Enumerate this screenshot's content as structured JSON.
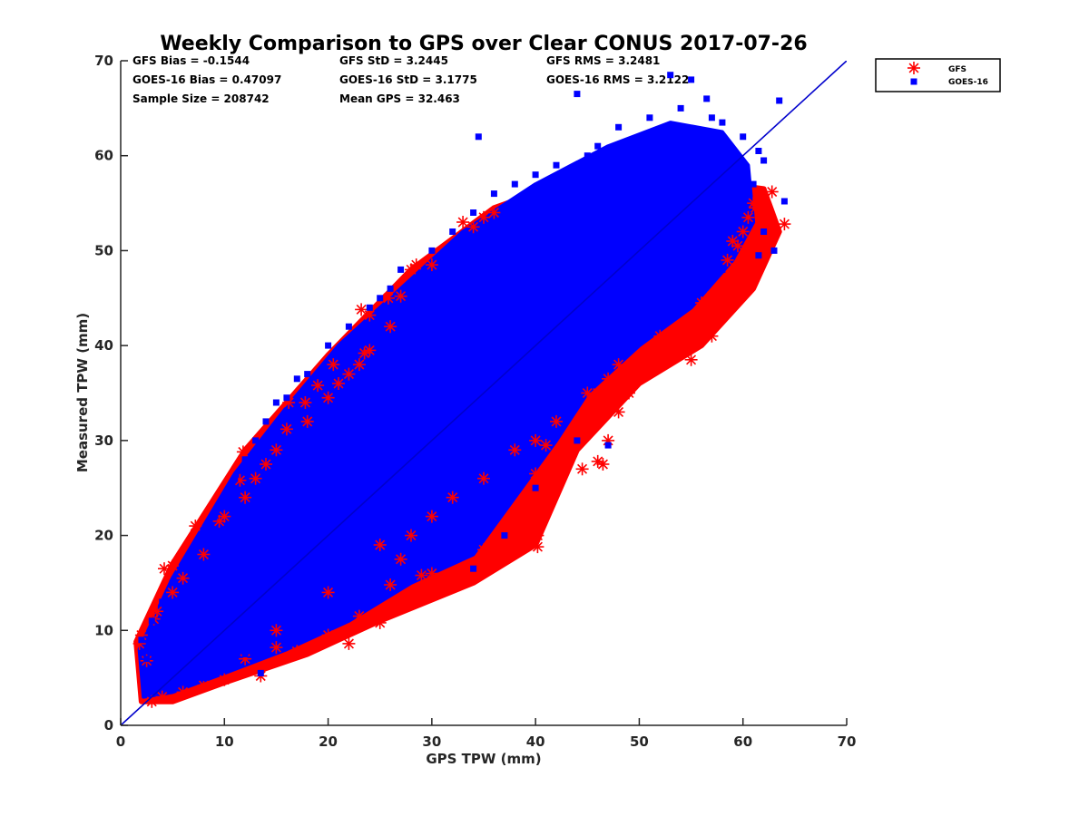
{
  "chart_data": {
    "type": "scatter",
    "title": "Weekly Comparison to GPS over Clear CONUS 2017-07-26",
    "xlabel": "GPS TPW (mm)",
    "ylabel": "Measured TPW (mm)",
    "xlim": [
      0,
      70
    ],
    "ylim": [
      0,
      70
    ],
    "xticks": [
      0,
      10,
      20,
      30,
      40,
      50,
      60,
      70
    ],
    "yticks": [
      0,
      10,
      20,
      30,
      40,
      50,
      60,
      70
    ],
    "grid": false,
    "legend_position": "outside-top-right",
    "reference_line": {
      "x": [
        0,
        70
      ],
      "y": [
        0,
        70
      ],
      "color": "#0000cc"
    },
    "stats": {
      "gfs_bias": "GFS Bias = -0.1544",
      "goes_bias": "GOES-16 Bias = 0.47097",
      "sample_size": "Sample Size = 208742",
      "gfs_std": "GFS StD = 3.2445",
      "goes_std": "GOES-16 StD = 3.1775",
      "mean_gps": "Mean GPS = 32.463",
      "gfs_rms": "GFS RMS = 3.2481",
      "goes_rms": "GOES-16 RMS = 3.2122"
    },
    "series": [
      {
        "name": "GFS",
        "marker": "asterisk",
        "color": "#ff0000",
        "points": [
          [
            1.8,
            8.6
          ],
          [
            2.5,
            6.8
          ],
          [
            3.2,
            11.2
          ],
          [
            4.2,
            16.5
          ],
          [
            5.0,
            16.8
          ],
          [
            7.2,
            21.0
          ],
          [
            9.5,
            21.5
          ],
          [
            11.5,
            25.8
          ],
          [
            11.8,
            28.8
          ],
          [
            14.0,
            27.5
          ],
          [
            16.0,
            31.2
          ],
          [
            16.2,
            34.0
          ],
          [
            17.8,
            34.0
          ],
          [
            19.0,
            35.8
          ],
          [
            20.5,
            38.0
          ],
          [
            21.0,
            36.0
          ],
          [
            23.0,
            38.0
          ],
          [
            23.5,
            39.2
          ],
          [
            24.0,
            39.5
          ],
          [
            23.2,
            43.8
          ],
          [
            24.0,
            43.2
          ],
          [
            25.8,
            45.0
          ],
          [
            27.0,
            45.2
          ],
          [
            28.0,
            48.0
          ],
          [
            28.5,
            48.5
          ],
          [
            33.0,
            53.0
          ],
          [
            34.0,
            52.5
          ],
          [
            35.0,
            53.5
          ],
          [
            36.0,
            54.0
          ],
          [
            30.0,
            48.5
          ],
          [
            62.8,
            56.2
          ],
          [
            61.0,
            55.0
          ],
          [
            61.2,
            54.5
          ],
          [
            64.0,
            52.8
          ],
          [
            61.0,
            49.5
          ],
          [
            60.5,
            48.2
          ],
          [
            61.0,
            47.0
          ],
          [
            60.0,
            47.5
          ],
          [
            58.0,
            45.0
          ],
          [
            57.0,
            45.2
          ],
          [
            56.5,
            44.0
          ],
          [
            55.0,
            42.5
          ],
          [
            57.0,
            41.0
          ],
          [
            55.0,
            38.5
          ],
          [
            53.0,
            40.0
          ],
          [
            51.0,
            37.5
          ],
          [
            50.5,
            38.5
          ],
          [
            47.0,
            36.5
          ],
          [
            46.0,
            35.0
          ],
          [
            45.0,
            33.0
          ],
          [
            44.5,
            31.0
          ],
          [
            43.0,
            29.5
          ],
          [
            41.0,
            29.5
          ],
          [
            40.0,
            26.5
          ],
          [
            39.0,
            23.0
          ],
          [
            40.2,
            20.0
          ],
          [
            40.2,
            18.8
          ],
          [
            37.0,
            18.5
          ],
          [
            36.0,
            19.0
          ],
          [
            35.0,
            18.5
          ],
          [
            33.0,
            15.5
          ],
          [
            32.5,
            15.8
          ],
          [
            30.0,
            16.0
          ],
          [
            29.0,
            15.8
          ],
          [
            27.0,
            17.5
          ],
          [
            26.0,
            14.8
          ],
          [
            25.0,
            10.8
          ],
          [
            23.0,
            11.5
          ],
          [
            22.0,
            8.6
          ],
          [
            20.0,
            9.5
          ],
          [
            18.0,
            8.0
          ],
          [
            17.0,
            7.8
          ],
          [
            15.0,
            8.2
          ],
          [
            13.5,
            5.2
          ],
          [
            10.0,
            4.8
          ],
          [
            8.0,
            4.2
          ],
          [
            6.0,
            3.5
          ],
          [
            4.0,
            3.0
          ],
          [
            3.0,
            2.5
          ],
          [
            44.5,
            27.0
          ],
          [
            46.0,
            27.8
          ],
          [
            46.5,
            27.5
          ],
          [
            47.0,
            30.0
          ],
          [
            48.0,
            33.0
          ],
          [
            49.0,
            35.0
          ],
          [
            52.0,
            41.0
          ],
          [
            54.0,
            42.0
          ],
          [
            56.0,
            44.5
          ],
          [
            58.0,
            46.0
          ],
          [
            59.5,
            50.5
          ],
          [
            60.0,
            52.0
          ],
          [
            60.5,
            53.5
          ],
          [
            59.0,
            51.0
          ],
          [
            58.5,
            49.0
          ],
          [
            12.0,
            24.0
          ],
          [
            10.0,
            22.0
          ],
          [
            13.0,
            26.0
          ],
          [
            15.0,
            29.0
          ],
          [
            18.0,
            32.0
          ],
          [
            20.0,
            34.5
          ],
          [
            22.0,
            37.0
          ],
          [
            26.0,
            42.0
          ],
          [
            8.0,
            18.0
          ],
          [
            6.0,
            15.5
          ],
          [
            5.0,
            14.0
          ],
          [
            3.5,
            12.0
          ],
          [
            2.0,
            9.5
          ],
          [
            30.0,
            22.0
          ],
          [
            35.0,
            26.0
          ],
          [
            38.0,
            29.0
          ],
          [
            42.0,
            32.0
          ],
          [
            45.0,
            35.0
          ],
          [
            48.0,
            38.0
          ],
          [
            25.0,
            19.0
          ],
          [
            20.0,
            14.0
          ],
          [
            15.0,
            10.0
          ],
          [
            12.0,
            7.0
          ],
          [
            28.0,
            20.0
          ],
          [
            32.0,
            24.0
          ],
          [
            40.0,
            30.0
          ]
        ]
      },
      {
        "name": "GOES-16",
        "marker": "square",
        "color": "#0000ff",
        "points": [
          [
            44.0,
            66.5
          ],
          [
            53.0,
            68.5
          ],
          [
            55.0,
            68.0
          ],
          [
            56.5,
            66.0
          ],
          [
            58.0,
            63.5
          ],
          [
            60.0,
            62.0
          ],
          [
            61.5,
            60.5
          ],
          [
            62.0,
            59.5
          ],
          [
            63.5,
            65.8
          ],
          [
            64.0,
            55.2
          ],
          [
            57.0,
            64.0
          ],
          [
            54.0,
            65.0
          ],
          [
            51.0,
            64.0
          ],
          [
            48.0,
            63.0
          ],
          [
            46.0,
            61.0
          ],
          [
            45.0,
            60.0
          ],
          [
            42.0,
            59.0
          ],
          [
            40.0,
            58.0
          ],
          [
            38.0,
            57.0
          ],
          [
            36.0,
            56.0
          ],
          [
            34.0,
            54.0
          ],
          [
            32.0,
            52.0
          ],
          [
            30.0,
            50.0
          ],
          [
            34.5,
            62.0
          ],
          [
            27.0,
            48.0
          ],
          [
            26.0,
            46.0
          ],
          [
            25.0,
            45.0
          ],
          [
            24.0,
            44.0
          ],
          [
            22.0,
            42.0
          ],
          [
            20.0,
            40.0
          ],
          [
            18.0,
            37.0
          ],
          [
            16.0,
            34.5
          ],
          [
            15.0,
            34.0
          ],
          [
            17.0,
            36.5
          ],
          [
            14.0,
            32.0
          ],
          [
            13.0,
            30.0
          ],
          [
            12.0,
            28.0
          ],
          [
            11.0,
            26.0
          ],
          [
            10.0,
            24.0
          ],
          [
            9.0,
            22.0
          ],
          [
            8.0,
            20.0
          ],
          [
            7.0,
            18.0
          ],
          [
            6.0,
            16.5
          ],
          [
            5.0,
            15.0
          ],
          [
            4.0,
            13.0
          ],
          [
            3.0,
            11.0
          ],
          [
            2.0,
            9.0
          ],
          [
            2.5,
            7.0
          ],
          [
            3.0,
            5.0
          ],
          [
            4.0,
            4.0
          ],
          [
            6.0,
            4.5
          ],
          [
            8.0,
            5.0
          ],
          [
            10.0,
            6.0
          ],
          [
            12.0,
            7.5
          ],
          [
            14.0,
            9.0
          ],
          [
            16.0,
            11.0
          ],
          [
            18.0,
            13.0
          ],
          [
            20.0,
            15.0
          ],
          [
            22.0,
            17.0
          ],
          [
            24.0,
            19.0
          ],
          [
            26.0,
            21.0
          ],
          [
            28.0,
            23.0
          ],
          [
            30.0,
            25.0
          ],
          [
            32.0,
            27.0
          ],
          [
            34.0,
            29.0
          ],
          [
            36.0,
            31.0
          ],
          [
            38.0,
            33.0
          ],
          [
            40.0,
            35.0
          ],
          [
            42.0,
            37.0
          ],
          [
            44.0,
            39.0
          ],
          [
            46.0,
            41.0
          ],
          [
            48.0,
            43.0
          ],
          [
            50.0,
            45.0
          ],
          [
            52.0,
            47.0
          ],
          [
            54.0,
            49.0
          ],
          [
            56.0,
            51.0
          ],
          [
            58.0,
            53.0
          ],
          [
            60.0,
            55.0
          ],
          [
            61.0,
            57.0
          ],
          [
            60.0,
            58.5
          ],
          [
            47.0,
            29.5
          ],
          [
            44.0,
            30.0
          ],
          [
            40.0,
            25.0
          ],
          [
            37.0,
            20.0
          ],
          [
            34.0,
            16.5
          ],
          [
            13.5,
            5.5
          ],
          [
            15.0,
            12.0
          ],
          [
            25.0,
            30.0
          ],
          [
            30.0,
            35.0
          ],
          [
            35.0,
            40.0
          ],
          [
            40.0,
            45.0
          ],
          [
            45.0,
            50.0
          ],
          [
            50.0,
            55.0
          ],
          [
            55.0,
            58.0
          ],
          [
            20.0,
            25.0
          ],
          [
            15.0,
            20.0
          ],
          [
            10.0,
            15.0
          ],
          [
            5.0,
            10.0
          ],
          [
            28.0,
            40.0
          ],
          [
            33.0,
            45.0
          ],
          [
            38.0,
            50.0
          ],
          [
            43.0,
            55.0
          ],
          [
            48.0,
            58.0
          ],
          [
            52.0,
            60.0
          ],
          [
            53.0,
            62.0
          ],
          [
            50.0,
            50.0
          ],
          [
            45.0,
            45.0
          ],
          [
            40.0,
            40.0
          ],
          [
            35.0,
            35.0
          ],
          [
            30.0,
            30.0
          ],
          [
            25.0,
            25.0
          ],
          [
            20.0,
            20.0
          ],
          [
            15.0,
            15.0
          ],
          [
            10.0,
            10.0
          ],
          [
            6.0,
            8.0
          ],
          [
            62.0,
            52.0
          ],
          [
            63.0,
            50.0
          ],
          [
            61.5,
            49.5
          ],
          [
            58.0,
            48.0
          ],
          [
            56.0,
            47.0
          ]
        ]
      }
    ]
  }
}
